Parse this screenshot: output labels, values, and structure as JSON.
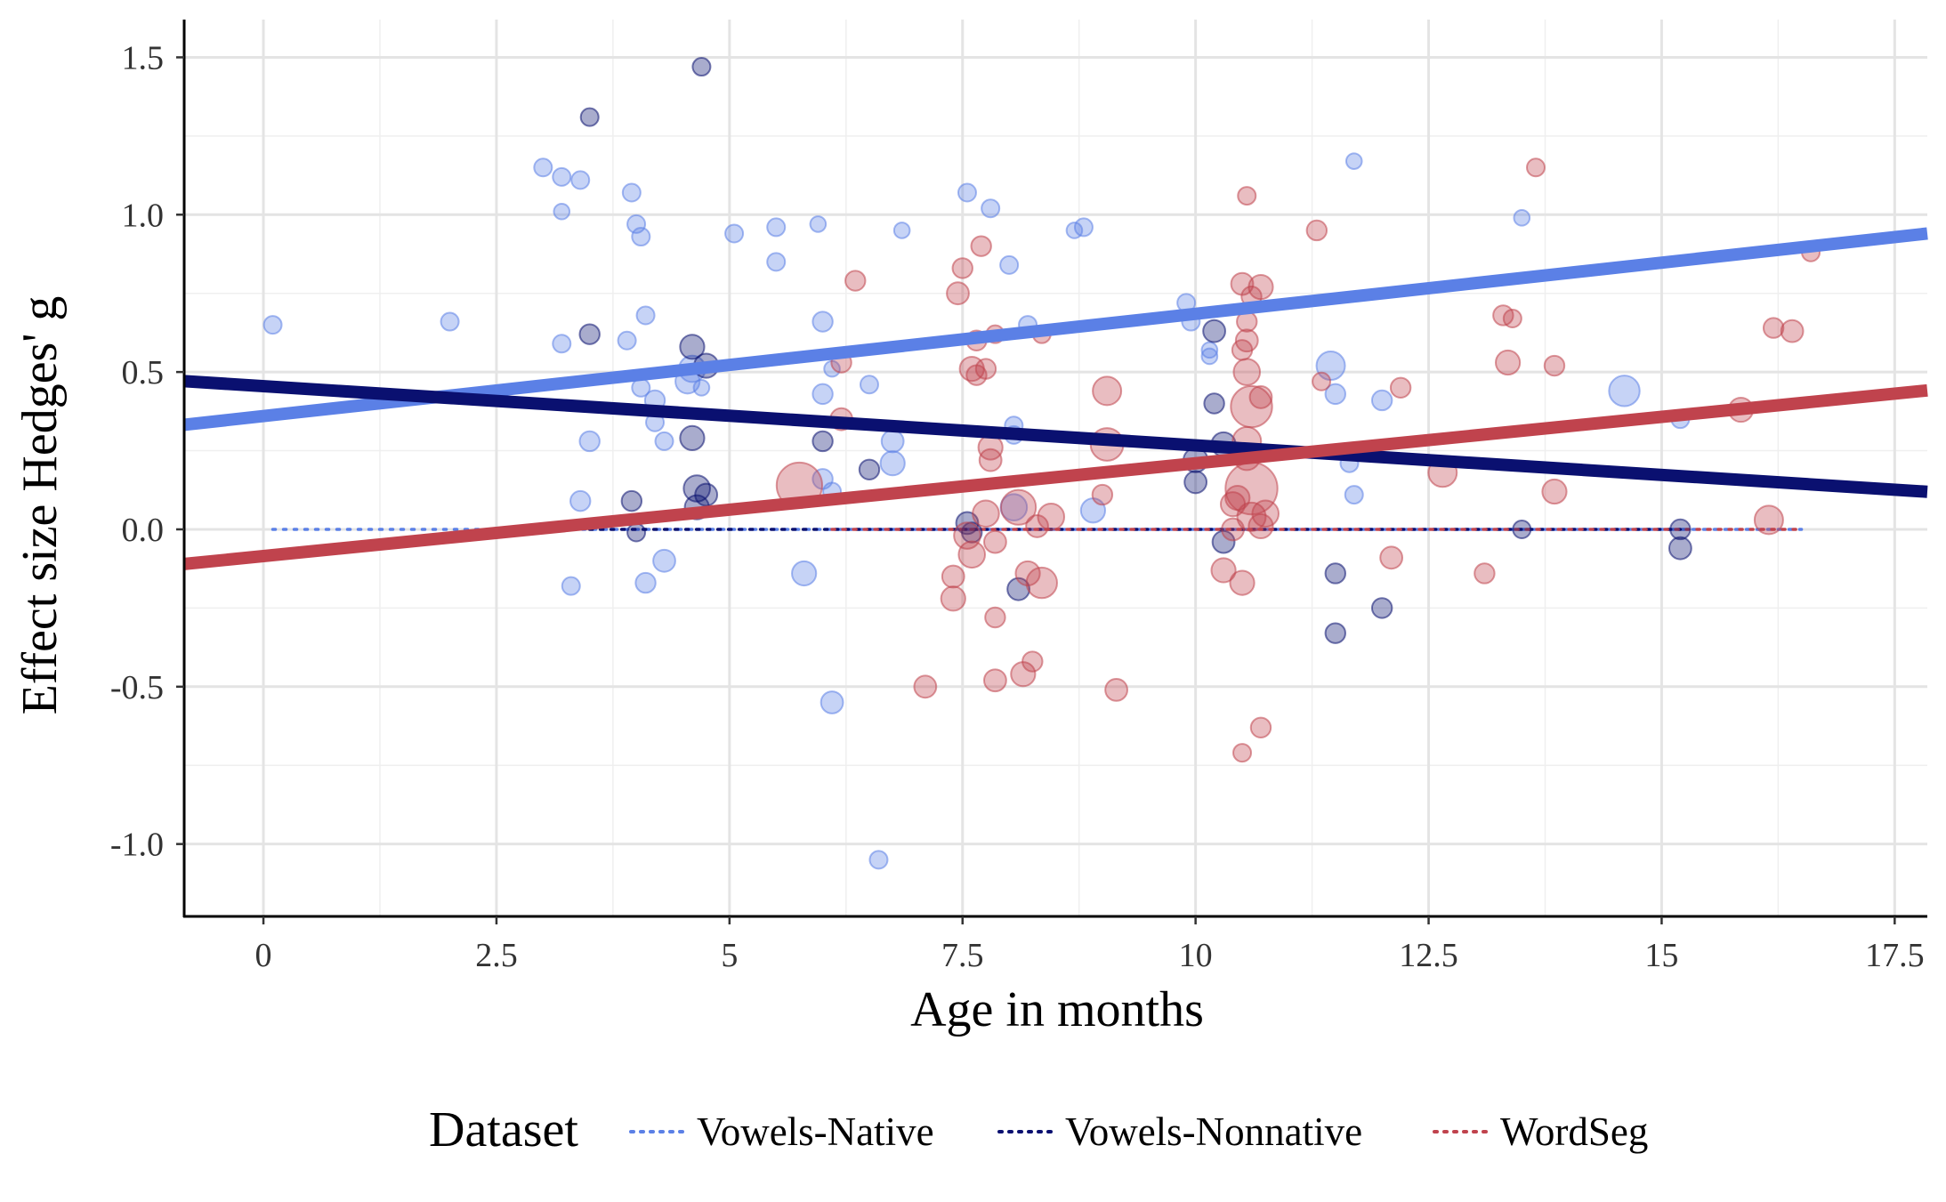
{
  "chart_data": {
    "type": "scatter",
    "xlabel": "Age in months",
    "ylabel": "Effect size Hedges' g",
    "xlim": [
      -0.85,
      17.85
    ],
    "ylim": [
      -1.23,
      1.62
    ],
    "x_ticks": [
      0,
      2.5,
      5,
      7.5,
      10,
      12.5,
      15,
      17.5
    ],
    "x_tick_labels": [
      "0",
      "2.5",
      "5",
      "7.5",
      "10",
      "12.5",
      "15",
      "17.5"
    ],
    "y_ticks": [
      -1.0,
      -0.5,
      0.0,
      0.5,
      1.0,
      1.5
    ],
    "y_tick_labels": [
      "-1.0",
      "-0.5",
      "0.0",
      "0.5",
      "1.0",
      "1.5"
    ],
    "grid": true,
    "legend": {
      "title": "Dataset",
      "position": "bottom",
      "entries": [
        "Vowels-Native",
        "Vowels-Nonnative",
        "WordSeg"
      ]
    },
    "series": [
      {
        "name": "Vowels-Native",
        "color": "#5b80e6",
        "regression": {
          "intercept": 0.36,
          "slope": 0.0325
        },
        "null_line": {
          "x": [
            0.1,
            16.5
          ]
        },
        "points": [
          [
            0.1,
            0.65,
            0.05
          ],
          [
            2.0,
            0.66,
            0.05
          ],
          [
            3.0,
            1.15,
            0.05
          ],
          [
            3.2,
            1.12,
            0.05
          ],
          [
            3.2,
            1.01,
            0.04
          ],
          [
            3.2,
            0.59,
            0.05
          ],
          [
            3.4,
            1.11,
            0.05
          ],
          [
            3.4,
            0.09,
            0.06
          ],
          [
            3.3,
            -0.18,
            0.05
          ],
          [
            3.5,
            0.28,
            0.06
          ],
          [
            3.9,
            0.6,
            0.05
          ],
          [
            3.95,
            1.07,
            0.05
          ],
          [
            4.0,
            0.97,
            0.05
          ],
          [
            4.05,
            0.93,
            0.05
          ],
          [
            4.05,
            0.45,
            0.05
          ],
          [
            4.1,
            0.68,
            0.05
          ],
          [
            4.1,
            -0.17,
            0.06
          ],
          [
            4.2,
            0.34,
            0.05
          ],
          [
            4.2,
            0.41,
            0.06
          ],
          [
            4.3,
            0.28,
            0.05
          ],
          [
            4.3,
            -0.1,
            0.07
          ],
          [
            4.55,
            0.47,
            0.08
          ],
          [
            4.6,
            0.51,
            0.09
          ],
          [
            4.7,
            0.45,
            0.04
          ],
          [
            5.05,
            0.94,
            0.05
          ],
          [
            5.5,
            0.96,
            0.05
          ],
          [
            5.5,
            0.85,
            0.05
          ],
          [
            5.8,
            -0.14,
            0.08
          ],
          [
            5.95,
            0.97,
            0.04
          ],
          [
            6.0,
            0.66,
            0.06
          ],
          [
            6.0,
            0.43,
            0.06
          ],
          [
            6.0,
            0.16,
            0.06
          ],
          [
            6.1,
            0.12,
            0.05
          ],
          [
            6.1,
            0.51,
            0.04
          ],
          [
            6.1,
            -0.55,
            0.07
          ],
          [
            6.5,
            0.46,
            0.05
          ],
          [
            6.6,
            -1.05,
            0.05
          ],
          [
            6.75,
            0.28,
            0.07
          ],
          [
            6.75,
            0.21,
            0.08
          ],
          [
            6.85,
            0.95,
            0.04
          ],
          [
            7.55,
            1.07,
            0.05
          ],
          [
            7.8,
            1.02,
            0.05
          ],
          [
            8.0,
            0.84,
            0.05
          ],
          [
            8.05,
            0.33,
            0.05
          ],
          [
            8.05,
            0.3,
            0.05
          ],
          [
            8.05,
            0.07,
            0.09
          ],
          [
            8.2,
            0.65,
            0.05
          ],
          [
            8.7,
            0.95,
            0.04
          ],
          [
            8.8,
            0.96,
            0.05
          ],
          [
            8.9,
            0.06,
            0.08
          ],
          [
            9.9,
            0.72,
            0.05
          ],
          [
            9.95,
            0.66,
            0.05
          ],
          [
            10.15,
            0.57,
            0.04
          ],
          [
            10.15,
            0.55,
            0.04
          ],
          [
            11.45,
            0.52,
            0.1
          ],
          [
            11.5,
            0.43,
            0.06
          ],
          [
            11.65,
            0.21,
            0.05
          ],
          [
            11.7,
            1.17,
            0.04
          ],
          [
            11.7,
            0.11,
            0.05
          ],
          [
            12.0,
            0.41,
            0.06
          ],
          [
            13.5,
            0.99,
            0.04
          ],
          [
            14.6,
            0.44,
            0.11
          ],
          [
            15.2,
            0.35,
            0.05
          ]
        ]
      },
      {
        "name": "Vowels-Nonnative",
        "color": "#0a1070",
        "regression": {
          "intercept": 0.455,
          "slope": -0.0188
        },
        "null_line": {
          "x": [
            3.5,
            15.2
          ]
        },
        "points": [
          [
            3.5,
            1.31,
            0.05
          ],
          [
            3.5,
            0.62,
            0.06
          ],
          [
            3.95,
            0.09,
            0.06
          ],
          [
            4.0,
            -0.01,
            0.05
          ],
          [
            4.6,
            0.58,
            0.08
          ],
          [
            4.6,
            0.29,
            0.08
          ],
          [
            4.65,
            0.13,
            0.09
          ],
          [
            4.65,
            0.07,
            0.08
          ],
          [
            4.7,
            1.47,
            0.05
          ],
          [
            4.75,
            0.52,
            0.08
          ],
          [
            4.75,
            0.11,
            0.07
          ],
          [
            6.0,
            0.28,
            0.06
          ],
          [
            6.5,
            0.19,
            0.06
          ],
          [
            7.55,
            0.02,
            0.07
          ],
          [
            7.6,
            -0.01,
            0.06
          ],
          [
            8.1,
            -0.19,
            0.07
          ],
          [
            10.0,
            0.22,
            0.08
          ],
          [
            10.0,
            0.15,
            0.07
          ],
          [
            10.2,
            0.63,
            0.07
          ],
          [
            10.2,
            0.4,
            0.06
          ],
          [
            10.3,
            0.27,
            0.08
          ],
          [
            10.3,
            -0.04,
            0.07
          ],
          [
            11.5,
            -0.14,
            0.06
          ],
          [
            11.5,
            -0.33,
            0.06
          ],
          [
            12.0,
            -0.25,
            0.06
          ],
          [
            13.5,
            0.0,
            0.05
          ],
          [
            15.2,
            -0.06,
            0.07
          ],
          [
            15.2,
            0.0,
            0.06
          ]
        ]
      },
      {
        "name": "WordSeg",
        "color": "#c0434d",
        "regression": {
          "intercept": -0.085,
          "slope": 0.0295
        },
        "null_line": {
          "x": [
            6.1,
            16.5
          ]
        },
        "points": [
          [
            5.75,
            0.14,
            0.18
          ],
          [
            6.2,
            0.53,
            0.06
          ],
          [
            6.2,
            0.35,
            0.07
          ],
          [
            6.35,
            0.79,
            0.06
          ],
          [
            7.1,
            -0.5,
            0.07
          ],
          [
            7.4,
            -0.15,
            0.07
          ],
          [
            7.4,
            -0.22,
            0.08
          ],
          [
            7.45,
            0.75,
            0.07
          ],
          [
            7.5,
            0.83,
            0.06
          ],
          [
            7.6,
            0.51,
            0.08
          ],
          [
            7.65,
            0.49,
            0.06
          ],
          [
            7.65,
            0.6,
            0.06
          ],
          [
            7.7,
            0.9,
            0.06
          ],
          [
            7.75,
            0.51,
            0.06
          ],
          [
            7.6,
            -0.08,
            0.09
          ],
          [
            7.55,
            -0.02,
            0.09
          ],
          [
            7.75,
            0.05,
            0.09
          ],
          [
            7.8,
            0.26,
            0.08
          ],
          [
            7.8,
            0.22,
            0.07
          ],
          [
            7.85,
            0.62,
            0.05
          ],
          [
            7.85,
            -0.04,
            0.07
          ],
          [
            7.85,
            -0.28,
            0.06
          ],
          [
            7.85,
            -0.48,
            0.07
          ],
          [
            8.1,
            0.07,
            0.13
          ],
          [
            8.15,
            -0.46,
            0.08
          ],
          [
            8.2,
            -0.14,
            0.08
          ],
          [
            8.25,
            -0.42,
            0.06
          ],
          [
            8.3,
            0.01,
            0.07
          ],
          [
            8.35,
            0.62,
            0.05
          ],
          [
            8.35,
            -0.17,
            0.11
          ],
          [
            8.45,
            0.04,
            0.09
          ],
          [
            9.0,
            0.11,
            0.06
          ],
          [
            9.05,
            0.44,
            0.1
          ],
          [
            9.05,
            0.27,
            0.12
          ],
          [
            9.15,
            -0.51,
            0.07
          ],
          [
            10.3,
            -0.13,
            0.08
          ],
          [
            10.4,
            0.08,
            0.08
          ],
          [
            10.4,
            0.0,
            0.07
          ],
          [
            10.45,
            0.1,
            0.08
          ],
          [
            10.5,
            0.78,
            0.07
          ],
          [
            10.5,
            -0.71,
            0.05
          ],
          [
            10.5,
            0.57,
            0.06
          ],
          [
            10.55,
            1.06,
            0.05
          ],
          [
            10.55,
            0.66,
            0.06
          ],
          [
            10.55,
            0.6,
            0.07
          ],
          [
            10.55,
            0.5,
            0.09
          ],
          [
            10.6,
            0.74,
            0.06
          ],
          [
            10.6,
            0.13,
            0.21
          ],
          [
            10.55,
            0.28,
            0.1
          ],
          [
            10.55,
            0.23,
            0.09
          ],
          [
            10.5,
            -0.17,
            0.08
          ],
          [
            10.6,
            0.39,
            0.16
          ],
          [
            10.6,
            0.04,
            0.1
          ],
          [
            10.7,
            0.77,
            0.08
          ],
          [
            10.7,
            0.42,
            0.07
          ],
          [
            10.7,
            0.01,
            0.08
          ],
          [
            10.7,
            -0.63,
            0.06
          ],
          [
            10.75,
            0.05,
            0.09
          ],
          [
            11.3,
            0.95,
            0.06
          ],
          [
            11.35,
            0.47,
            0.05
          ],
          [
            12.1,
            -0.09,
            0.07
          ],
          [
            12.2,
            0.45,
            0.06
          ],
          [
            12.65,
            0.18,
            0.1
          ],
          [
            13.1,
            -0.14,
            0.06
          ],
          [
            13.3,
            0.68,
            0.06
          ],
          [
            13.35,
            0.53,
            0.08
          ],
          [
            13.4,
            0.67,
            0.05
          ],
          [
            13.65,
            1.15,
            0.05
          ],
          [
            13.85,
            0.12,
            0.08
          ],
          [
            13.85,
            0.52,
            0.06
          ],
          [
            15.85,
            0.38,
            0.08
          ],
          [
            16.15,
            0.03,
            0.1
          ],
          [
            16.2,
            0.64,
            0.06
          ],
          [
            16.4,
            0.63,
            0.07
          ],
          [
            16.6,
            0.88,
            0.05
          ]
        ]
      }
    ]
  }
}
